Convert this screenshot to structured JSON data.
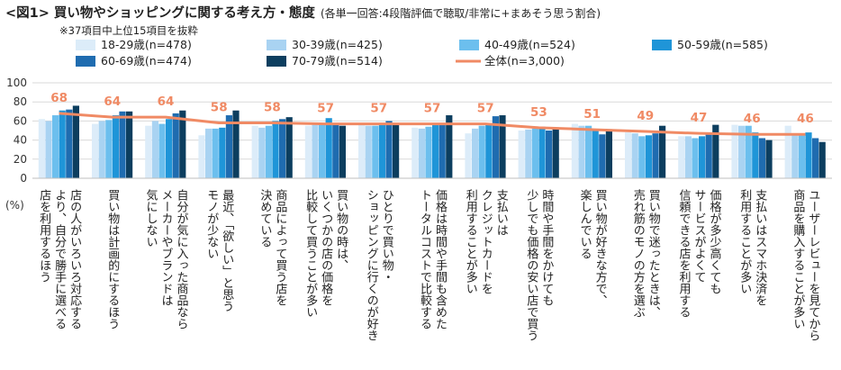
{
  "title": {
    "main": "<図1> 買い物やショッピングに関する考え方・態度",
    "note": "(各単一回答:4段階評価で聴取/非常に+まあそう思う割合)"
  },
  "subtitle": "※37項目中上位15項目を抜粋",
  "chart_data": {
    "type": "bar",
    "title": "<図1> 買い物やショッピングに関する考え方・態度",
    "ylabel": "(%)",
    "ylim": [
      0,
      100
    ],
    "yticks": [
      "0",
      "20",
      "40",
      "60",
      "80",
      "100"
    ],
    "grid": true,
    "legend_position": "top",
    "categories": [
      "店の人がいろいろ対応するより、自分で勝手に選べる店を利用するほう",
      "買い物は計画的にするほう",
      "自分が気に入った商品ならメーカーやブランドは気にしない",
      "最近、「欲しい」と思うモノが少ない",
      "商品によって買う店を決めている",
      "買い物の時は、いくつかの店の価格を比較して買うことが多い",
      "ひとりで買い物・ショッピングに行くのが好き",
      "価格は時間や手間も含めたトータルコストで比較する",
      "支払いはクレジットカードを利用することが多い",
      "時間や手間をかけても少しでも価格の安い店で買う",
      "買い物が好きな方で、楽しんでいる",
      "買い物で迷ったときは、売れ筋のモノの方を選ぶ",
      "価格が多少高くてもサービスがよくて信頼できる店を利用する",
      "支払いはスマホ決済を利用することが多い",
      "ユーザーレビューを見てから商品を購入することが多い"
    ],
    "category_lines": [
      [
        "店の人がいろいろ対応する",
        "より、自分で勝手に選べる",
        "店を利用するほう"
      ],
      [
        "買い物は計画的にするほう"
      ],
      [
        "自分が気に入った商品なら",
        "メーカーやブランドは",
        "気にしない"
      ],
      [
        "最近、「欲しい」と思う",
        "モノが少ない"
      ],
      [
        "商品によって買う店を",
        "決めている"
      ],
      [
        "買い物の時は、",
        "いくつかの店の価格を",
        "比較して買うことが多い"
      ],
      [
        "ひとりで買い物・",
        "ショッピングに行くのが好き"
      ],
      [
        "価格は時間や手間も含めた",
        "トータルコストで比較する"
      ],
      [
        "支払いは",
        "クレジットカードを",
        "利用することが多い"
      ],
      [
        "時間や手間をかけても",
        "少しでも価格の安い店で買う"
      ],
      [
        "買い物が好きな方で、",
        "楽しんでいる"
      ],
      [
        "買い物で迷ったときは、",
        "売れ筋のモノの方を選ぶ"
      ],
      [
        "価格が多少高くても",
        "サービスがよくて",
        "信頼できる店を利用する"
      ],
      [
        "支払いはスマホ決済を",
        "利用することが多い"
      ],
      [
        "ユーザーレビューを見てから",
        "商品を購入することが多い"
      ]
    ],
    "series": [
      {
        "name": "18-29歳(n=478)",
        "color": "#dcecf9",
        "values": [
          62,
          57,
          55,
          45,
          55,
          55,
          57,
          53,
          47,
          50,
          57,
          48,
          44,
          56,
          55
        ]
      },
      {
        "name": "30-39歳(n=425)",
        "color": "#a9d3f2",
        "values": [
          60,
          60,
          60,
          52,
          53,
          56,
          55,
          52,
          52,
          51,
          55,
          47,
          44,
          55,
          47
        ]
      },
      {
        "name": "40-49歳(n=524)",
        "color": "#6cbfee",
        "values": [
          66,
          61,
          57,
          52,
          55,
          57,
          55,
          54,
          55,
          52,
          55,
          44,
          42,
          55,
          47
        ]
      },
      {
        "name": "50-59歳(n=585)",
        "color": "#1f95d8",
        "values": [
          71,
          66,
          62,
          53,
          60,
          63,
          57,
          57,
          56,
          54,
          51,
          45,
          44,
          48,
          48
        ]
      },
      {
        "name": "60-69歳(n=474)",
        "color": "#1f6cb0",
        "values": [
          72,
          70,
          68,
          66,
          62,
          57,
          60,
          58,
          65,
          50,
          46,
          47,
          47,
          42,
          42
        ]
      },
      {
        "name": "70-79歳(n=514)",
        "color": "#0c3e5f",
        "values": [
          76,
          70,
          71,
          71,
          64,
          55,
          58,
          66,
          66,
          52,
          50,
          55,
          56,
          40,
          38
        ]
      }
    ],
    "total": {
      "name": "全体(n=3,000)",
      "color": "#f08a64",
      "values": [
        68,
        64,
        64,
        58,
        58,
        57,
        57,
        57,
        57,
        53,
        51,
        49,
        47,
        46,
        46
      ]
    }
  }
}
